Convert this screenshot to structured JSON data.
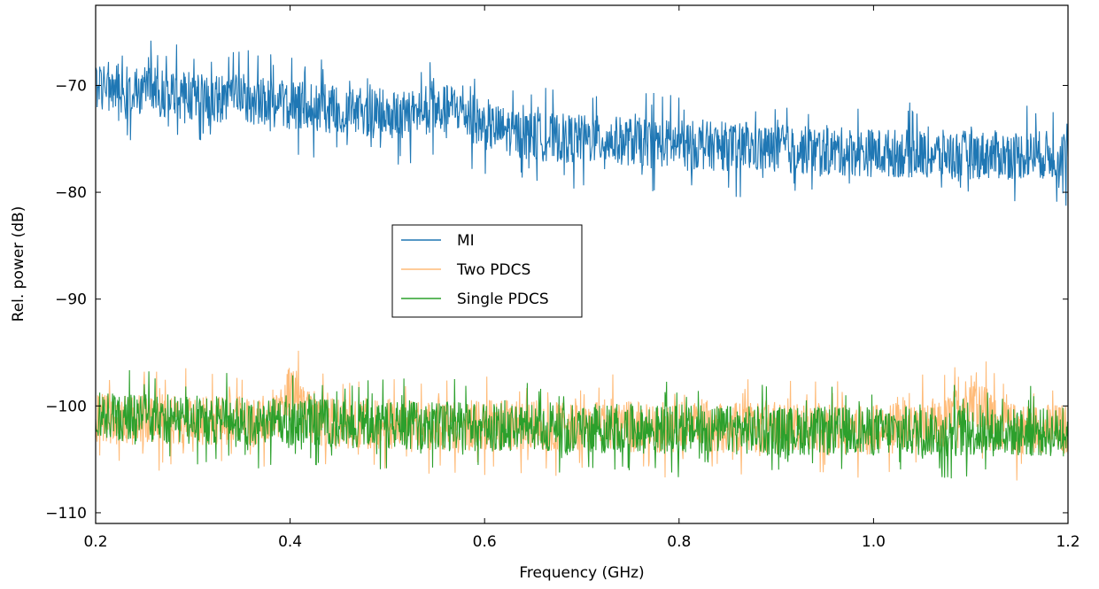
{
  "chart_data": {
    "type": "line",
    "xlabel": "Frequency (GHz)",
    "ylabel": "Rel. power (dB)",
    "xlim": [
      0.2,
      1.2
    ],
    "ylim": [
      -111,
      -62.5
    ],
    "xticks": [
      0.2,
      0.4,
      0.6,
      0.8,
      1.0,
      1.2
    ],
    "xtick_labels": [
      "0.2",
      "0.4",
      "0.6",
      "0.8",
      "1.0",
      "1.2"
    ],
    "yticks": [
      -110,
      -100,
      -90,
      -80,
      -70
    ],
    "ytick_labels": [
      "−110",
      "−100",
      "−90",
      "−80",
      "−70"
    ],
    "grid": false,
    "legend_position": "center-left",
    "series": [
      {
        "name": "MI",
        "color": "#1f77b4",
        "trend": {
          "x": [
            0.2,
            0.25,
            0.3,
            0.35,
            0.4,
            0.45,
            0.5,
            0.55,
            0.57,
            0.6,
            0.65,
            0.7,
            0.8,
            0.9,
            1.0,
            1.1,
            1.2
          ],
          "y": [
            -70.0,
            -70.5,
            -71.0,
            -71.3,
            -71.8,
            -72.3,
            -72.8,
            -72.5,
            -72.0,
            -73.8,
            -74.8,
            -75.0,
            -75.5,
            -76.0,
            -76.3,
            -76.5,
            -76.5
          ]
        },
        "band_halfwidth_db": 2.3,
        "spike_max_db": 4.8
      },
      {
        "name": "Two PDCS",
        "color": "#ffbb78",
        "trend": {
          "x": [
            0.2,
            0.37,
            0.385,
            0.4,
            0.415,
            0.43,
            0.6,
            0.8,
            1.0,
            1.07,
            1.085,
            1.1,
            1.115,
            1.13,
            1.2
          ],
          "y": [
            -101.2,
            -101.5,
            -100.5,
            -98.5,
            -100.5,
            -101.6,
            -101.8,
            -102.0,
            -102.2,
            -102.0,
            -100.5,
            -99.0,
            -100.5,
            -102.0,
            -102.2
          ]
        },
        "band_halfwidth_db": 2.4,
        "spike_max_db": 5.0
      },
      {
        "name": "Single PDCS",
        "color": "#2ca02c",
        "trend": {
          "x": [
            0.2,
            0.4,
            0.6,
            0.8,
            1.0,
            1.2
          ],
          "y": [
            -101.0,
            -101.6,
            -102.0,
            -102.2,
            -102.4,
            -102.5
          ]
        },
        "band_halfwidth_db": 2.3,
        "spike_max_db": 4.5
      }
    ]
  }
}
